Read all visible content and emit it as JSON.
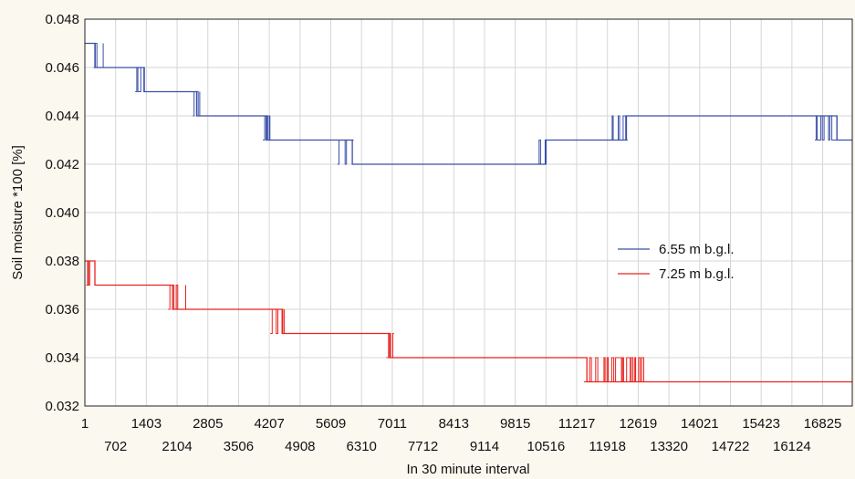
{
  "chart_data": {
    "type": "line",
    "title": "",
    "xlabel": "In 30 minute interval",
    "ylabel": "Soil moisture *100 [%]",
    "xlim": [
      1,
      17500
    ],
    "ylim": [
      0.032,
      0.048
    ],
    "grid": true,
    "legend_position": "center-right",
    "x_ticks_top": [
      "1",
      "1403",
      "2805",
      "4207",
      "5609",
      "7011",
      "8413",
      "9815",
      "11217",
      "12619",
      "14021",
      "15423",
      "16825"
    ],
    "x_ticks_top_values": [
      1,
      1403,
      2805,
      4207,
      5609,
      7011,
      8413,
      9815,
      11217,
      12619,
      14021,
      15423,
      16825
    ],
    "x_ticks_bottom": [
      "702",
      "2104",
      "3506",
      "4908",
      "6310",
      "7712",
      "9114",
      "10516",
      "11918",
      "13320",
      "14722",
      "16124"
    ],
    "x_ticks_bottom_values": [
      702,
      2104,
      3506,
      4908,
      6310,
      7712,
      9114,
      10516,
      11918,
      13320,
      14722,
      16124
    ],
    "y_ticks": [
      "0.032",
      "0.034",
      "0.036",
      "0.038",
      "0.040",
      "0.042",
      "0.044",
      "0.046",
      "0.048"
    ],
    "y_tick_values": [
      0.032,
      0.034,
      0.036,
      0.038,
      0.04,
      0.042,
      0.044,
      0.046,
      0.048
    ],
    "series": [
      {
        "name": "6.55 m b.g.l.",
        "color": "#3a4fa8",
        "steps": [
          {
            "x": 1,
            "y": 0.047
          },
          {
            "x": 230,
            "y": 0.046
          },
          {
            "x": 1300,
            "y": 0.046
          },
          {
            "x": 1350,
            "y": 0.045
          },
          {
            "x": 2500,
            "y": 0.045
          },
          {
            "x": 2550,
            "y": 0.044
          },
          {
            "x": 4100,
            "y": 0.044
          },
          {
            "x": 4150,
            "y": 0.043
          },
          {
            "x": 5850,
            "y": 0.043
          },
          {
            "x": 6100,
            "y": 0.042
          },
          {
            "x": 10350,
            "y": 0.042
          },
          {
            "x": 10500,
            "y": 0.043
          },
          {
            "x": 12050,
            "y": 0.043
          },
          {
            "x": 12350,
            "y": 0.044
          },
          {
            "x": 16650,
            "y": 0.044
          },
          {
            "x": 17150,
            "y": 0.043
          },
          {
            "x": 17500,
            "y": 0.043
          }
        ],
        "noise_bands": [
          {
            "x0": 200,
            "x1": 420,
            "lo": 0.046,
            "hi": 0.047
          },
          {
            "x0": 1150,
            "x1": 1360,
            "lo": 0.045,
            "hi": 0.046
          },
          {
            "x0": 2460,
            "x1": 2620,
            "lo": 0.044,
            "hi": 0.045
          },
          {
            "x0": 4060,
            "x1": 4220,
            "lo": 0.043,
            "hi": 0.044
          },
          {
            "x0": 5760,
            "x1": 6130,
            "lo": 0.042,
            "hi": 0.043
          },
          {
            "x0": 10200,
            "x1": 10520,
            "lo": 0.042,
            "hi": 0.043
          },
          {
            "x0": 11950,
            "x1": 12380,
            "lo": 0.043,
            "hi": 0.044
          },
          {
            "x0": 16650,
            "x1": 17150,
            "lo": 0.043,
            "hi": 0.044
          }
        ]
      },
      {
        "name": "7.25 m b.g.l.",
        "color": "#e8231e",
        "steps": [
          {
            "x": 1,
            "y": 0.038
          },
          {
            "x": 230,
            "y": 0.037
          },
          {
            "x": 1950,
            "y": 0.037
          },
          {
            "x": 2000,
            "y": 0.036
          },
          {
            "x": 4400,
            "y": 0.036
          },
          {
            "x": 4500,
            "y": 0.035
          },
          {
            "x": 6880,
            "y": 0.035
          },
          {
            "x": 6950,
            "y": 0.034
          },
          {
            "x": 11400,
            "y": 0.034
          },
          {
            "x": 11450,
            "y": 0.033
          },
          {
            "x": 17500,
            "y": 0.033
          }
        ],
        "noise_bands": [
          {
            "x0": 30,
            "x1": 230,
            "lo": 0.037,
            "hi": 0.038
          },
          {
            "x0": 1900,
            "x1": 2300,
            "lo": 0.036,
            "hi": 0.037
          },
          {
            "x0": 4230,
            "x1": 4550,
            "lo": 0.035,
            "hi": 0.036
          },
          {
            "x0": 6880,
            "x1": 7050,
            "lo": 0.034,
            "hi": 0.035
          },
          {
            "x0": 11380,
            "x1": 12750,
            "lo": 0.033,
            "hi": 0.034
          }
        ]
      }
    ]
  }
}
